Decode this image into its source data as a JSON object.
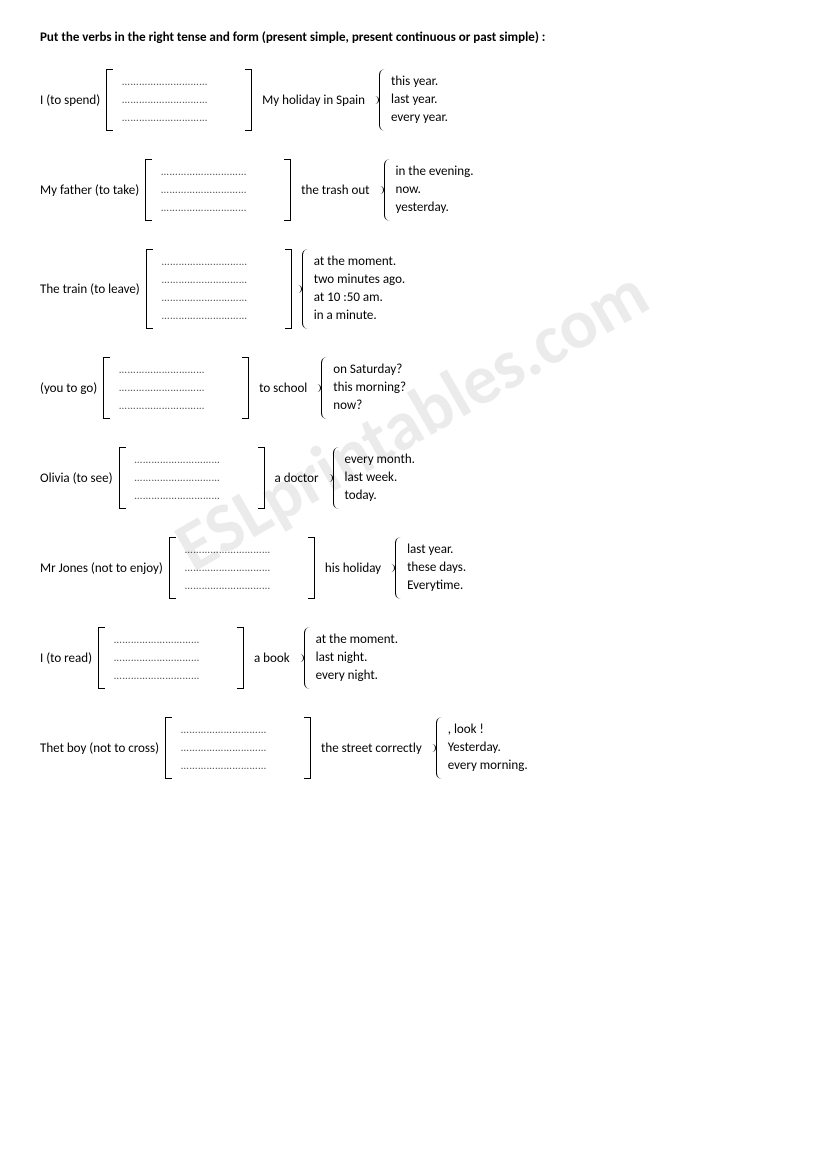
{
  "title": "Put the verbs in the right tense and form (present simple, present continuous or past simple) :",
  "watermark": "ESLprintables.com",
  "dotted_line": "…………………………",
  "exercises": [
    {
      "subject": "I (to spend)",
      "blank_count": 3,
      "mid": "My holiday in Spain",
      "ends": [
        "this year.",
        "last year.",
        "every year."
      ]
    },
    {
      "subject": "My father (to take)",
      "blank_count": 3,
      "mid": "the trash out",
      "ends": [
        "in the evening.",
        "now.",
        "yesterday."
      ]
    },
    {
      "subject": "The train (to leave)",
      "blank_count": 4,
      "mid": "",
      "ends": [
        "at the moment.",
        "two minutes ago.",
        "at 10 :50 am.",
        "in a minute."
      ]
    },
    {
      "subject": "(you to go)",
      "blank_count": 3,
      "mid": "to school",
      "ends": [
        "on Saturday?",
        "this morning?",
        "now?"
      ]
    },
    {
      "subject": "Olivia (to see)",
      "blank_count": 3,
      "mid": "a doctor",
      "ends": [
        "every month.",
        "last week.",
        "today."
      ]
    },
    {
      "subject": "Mr Jones (not to enjoy)",
      "blank_count": 3,
      "mid": "his holiday",
      "ends": [
        "last year.",
        "these days.",
        "Everytime."
      ]
    },
    {
      "subject": "I (to read)",
      "blank_count": 3,
      "mid": "a book",
      "ends": [
        "at the moment.",
        "last night.",
        "every night."
      ]
    },
    {
      "subject": "Thet boy (not to cross)",
      "blank_count": 3,
      "mid": "the street correctly",
      "ends": [
        ", look !",
        "Yesterday.",
        "every morning."
      ]
    }
  ]
}
